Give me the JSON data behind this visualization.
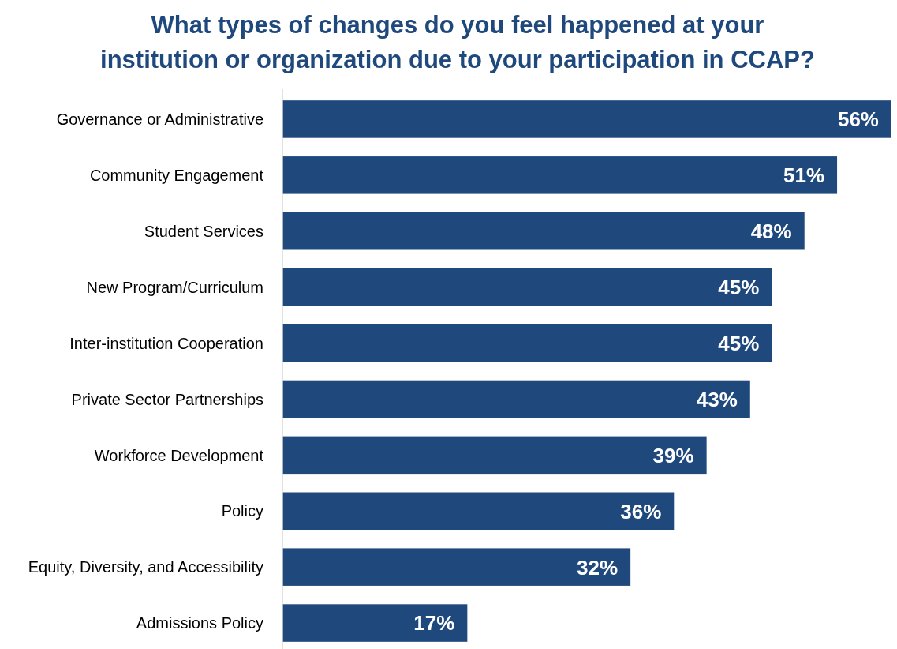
{
  "chart_data": {
    "type": "bar",
    "orientation": "horizontal",
    "title": "What types of changes do you feel happened at your\ninstitution or organization due to your participation in CCAP?",
    "categories": [
      "Governance or Administrative",
      "Community Engagement",
      "Student Services",
      "New Program/Curriculum",
      "Inter-institution Cooperation",
      "Private Sector Partnerships",
      "Workforce Development",
      "Policy",
      "Equity, Diversity, and Accessibility",
      "Admissions Policy"
    ],
    "values": [
      56,
      51,
      48,
      45,
      45,
      43,
      39,
      36,
      32,
      17
    ],
    "value_labels": [
      "56%",
      "51%",
      "48%",
      "45%",
      "45%",
      "43%",
      "39%",
      "36%",
      "32%",
      "17%"
    ],
    "color": "#1f497d"
  }
}
